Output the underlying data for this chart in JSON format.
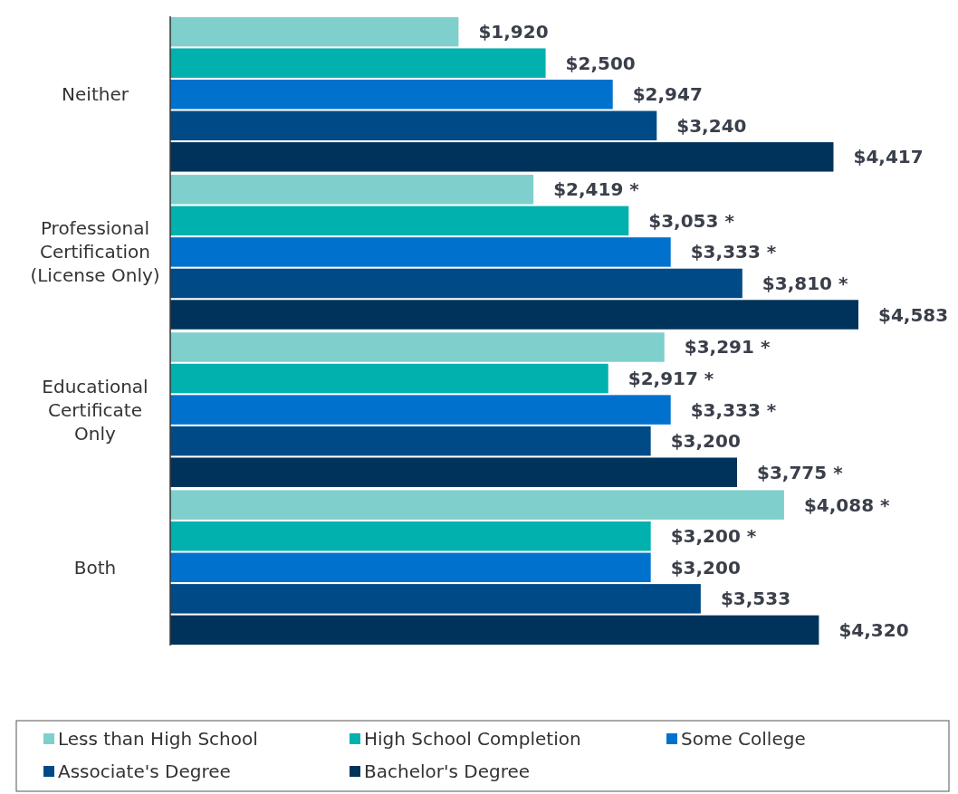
{
  "chart_data": {
    "type": "bar",
    "orientation": "horizontal",
    "legend": "bottom",
    "categories": [
      "Neither",
      "Professional Certification (License Only)",
      "Educational Certificate Only",
      "Both"
    ],
    "series": [
      {
        "name": "Less than High School",
        "color": "#7fcfcd",
        "values": [
          1920,
          2419,
          3291,
          4088
        ],
        "value_labels": [
          "$1,920",
          "$2,419 *",
          "$3,291 *",
          "$4,088 *"
        ]
      },
      {
        "name": "High School Completion",
        "color": "#00b1ae",
        "values": [
          2500,
          3053,
          2917,
          3200
        ],
        "value_labels": [
          "$2,500",
          "$3,053 *",
          "$2,917 *",
          "$3,200 *"
        ]
      },
      {
        "name": "Some College",
        "color": "#0072ce",
        "values": [
          2947,
          3333,
          3333,
          3200
        ],
        "value_labels": [
          "$2,947",
          "$3,333 *",
          "$3,333 *",
          "$3,200"
        ]
      },
      {
        "name": "Associate's Degree",
        "color": "#004b87",
        "values": [
          3240,
          3810,
          3200,
          3533
        ],
        "value_labels": [
          "$3,240",
          "$3,810 *",
          "$3,200",
          "$3,533"
        ]
      },
      {
        "name": "Bachelor's Degree",
        "color": "#00335b",
        "values": [
          4417,
          4583,
          3775,
          4320
        ],
        "value_labels": [
          "$4,417",
          "$4,583",
          "$3,775 *",
          "$4,320"
        ]
      }
    ]
  }
}
